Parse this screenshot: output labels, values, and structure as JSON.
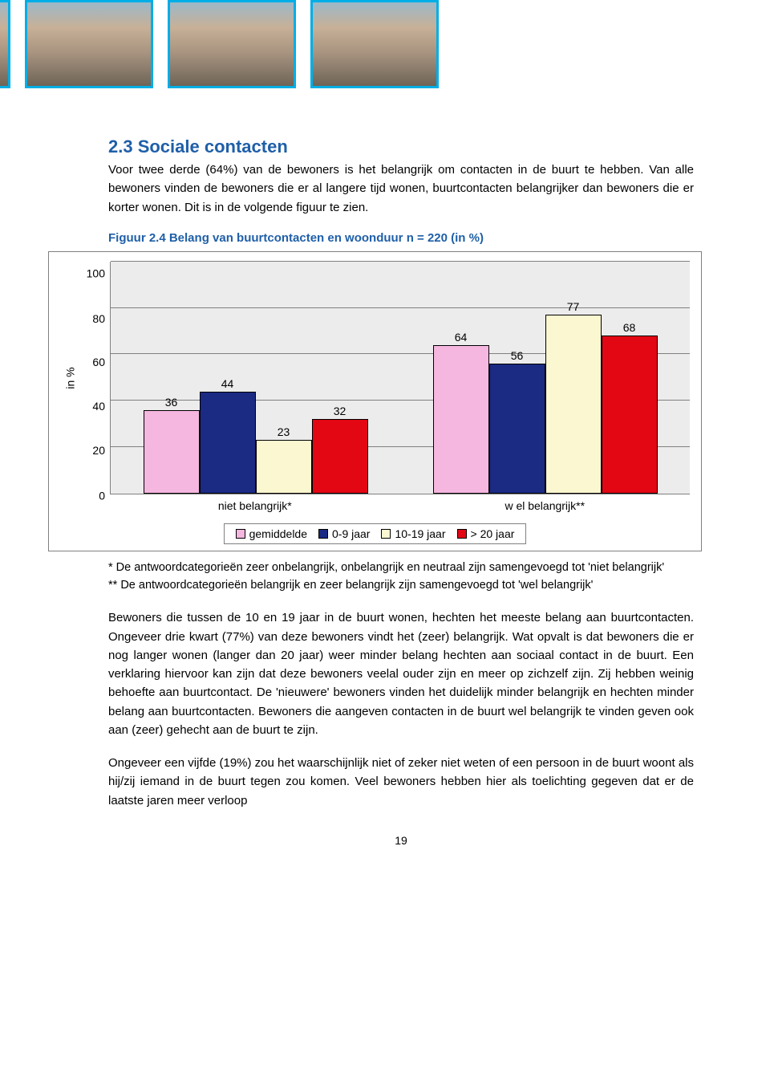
{
  "photo_strip": {
    "border_color": "#00aee6",
    "count": 4
  },
  "heading": {
    "text": "2.3 Sociale contacten",
    "color": "#1f5fa8"
  },
  "intro": "Voor twee derde (64%) van de bewoners is het belangrijk om contacten in de buurt te hebben. Van alle bewoners vinden de bewoners die er al langere tijd wonen, buurtcontacten belangrijker dan bewoners die er korter wonen. Dit is in de volgende figuur te zien.",
  "figure_title": {
    "text": "Figuur 2.4  Belang van buurtcontacten en woonduur n = 220 (in %)",
    "color": "#1f5fa8"
  },
  "chart": {
    "type": "bar",
    "ylabel": "in %",
    "ylim": [
      0,
      100
    ],
    "ytick_step": 20,
    "yticks": [
      100,
      80,
      60,
      40,
      20,
      0
    ],
    "background_color": "#ececec",
    "grid_color": "#808080",
    "series": [
      {
        "key": "gemiddelde",
        "color": "#f5b6e0",
        "label": "gemiddelde"
      },
      {
        "key": "0_9",
        "color": "#1b2a83",
        "label": "0-9 jaar"
      },
      {
        "key": "10_19",
        "color": "#fbf7d0",
        "label": "10-19 jaar"
      },
      {
        "key": "gt20",
        "color": "#e30613",
        "label": "> 20 jaar"
      }
    ],
    "groups": [
      {
        "label": "niet belangrijk*",
        "values": {
          "gemiddelde": 36,
          "0_9": 44,
          "10_19": 23,
          "gt20": 32
        }
      },
      {
        "label": "w el belangrijk**",
        "values": {
          "gemiddelde": 64,
          "0_9": 56,
          "10_19": 77,
          "gt20": 68
        }
      }
    ]
  },
  "footnote1": "* De antwoordcategorieën zeer onbelangrijk, onbelangrijk en neutraal zijn samengevoegd tot 'niet belangrijk'",
  "footnote2": "** De antwoordcategorieën belangrijk en zeer belangrijk zijn samengevoegd tot 'wel belangrijk'",
  "para2": "Bewoners die tussen de 10 en 19 jaar in de buurt wonen, hechten het meeste belang aan buurtcontacten. Ongeveer drie kwart (77%) van deze bewoners vindt het (zeer) belangrijk. Wat opvalt is dat bewoners die er nog langer wonen (langer dan 20 jaar) weer minder belang hechten aan sociaal contact in de buurt. Een verklaring hiervoor kan zijn dat deze bewoners veelal ouder zijn en meer op zichzelf zijn. Zij hebben weinig behoefte aan buurtcontact. De 'nieuwere' bewoners vinden het duidelijk minder belangrijk en hechten minder belang aan buurtcontacten. Bewoners die aangeven contacten in de buurt wel belangrijk te vinden geven ook aan (zeer) gehecht aan de buurt te zijn.",
  "para3": "Ongeveer een vijfde (19%) zou het waarschijnlijk niet of zeker niet weten of een persoon in de buurt woont als hij/zij iemand in de buurt tegen zou komen. Veel bewoners hebben hier als toelichting gegeven dat er de laatste jaren meer verloop",
  "pagenum": "19"
}
